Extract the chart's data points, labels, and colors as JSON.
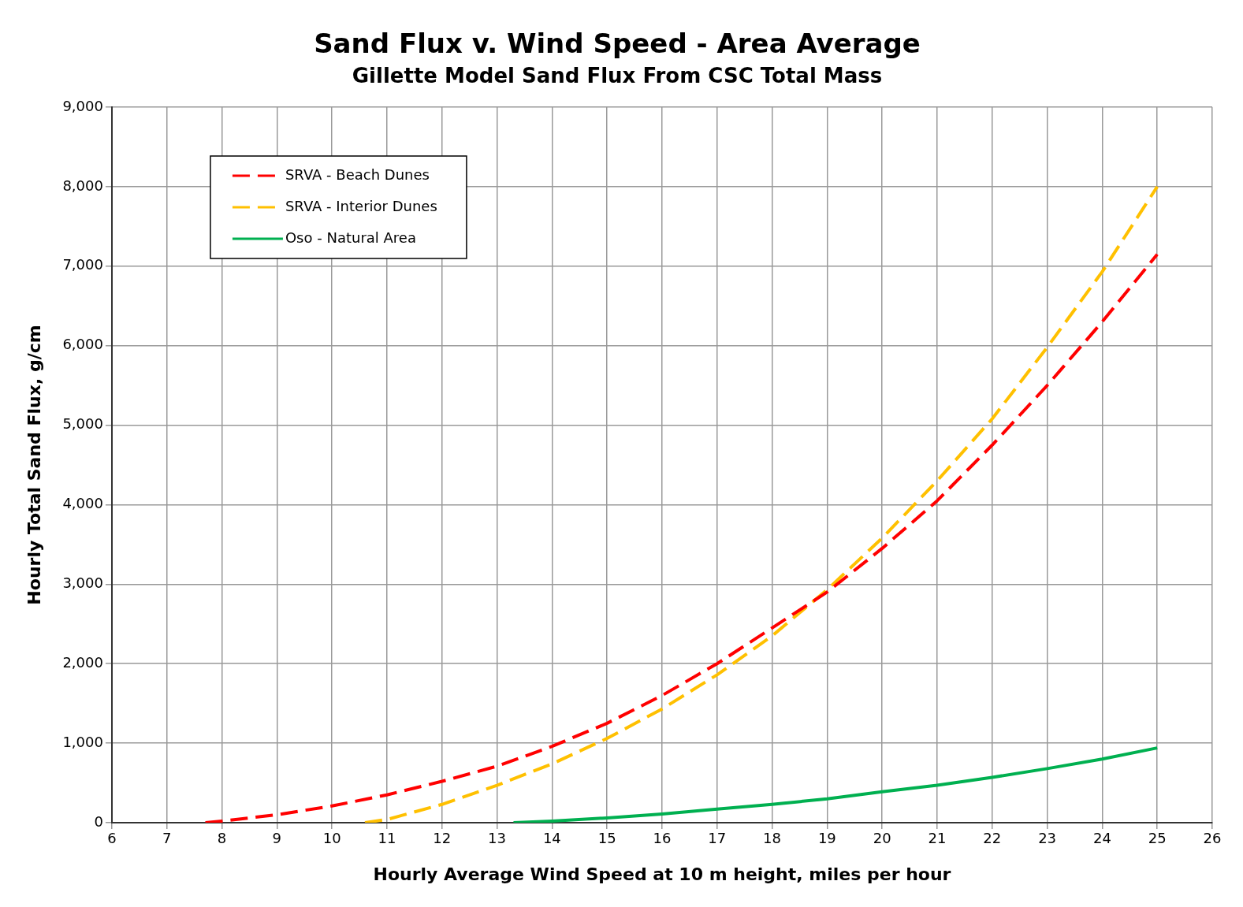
{
  "chart_data": {
    "type": "line",
    "title": "Sand Flux v. Wind Speed - Area Average",
    "subtitle": "Gillette Model Sand Flux From CSC Total Mass",
    "xlabel": "Hourly Average Wind Speed at 10 m height, miles per hour",
    "ylabel": "Hourly Total Sand Flux, g/cm",
    "series": [
      {
        "name": "SRVA - Beach Dunes",
        "color": "#ff0000",
        "line_style": "dashed",
        "x": [
          7.7,
          8,
          9,
          10,
          11,
          12,
          13,
          14,
          15,
          16,
          17,
          18,
          19,
          20,
          21,
          22,
          23,
          24,
          25
        ],
        "values": [
          0,
          20,
          100,
          210,
          350,
          520,
          710,
          960,
          1250,
          1600,
          2000,
          2450,
          2900,
          3450,
          4050,
          4750,
          5500,
          6300,
          7150
        ]
      },
      {
        "name": "SRVA - Interior Dunes",
        "color": "#ffc000",
        "line_style": "dashed",
        "x": [
          10.6,
          11,
          12,
          13,
          14,
          15,
          16,
          17,
          18,
          19,
          20,
          21,
          22,
          23,
          24,
          25
        ],
        "values": [
          0,
          40,
          230,
          470,
          740,
          1060,
          1430,
          1860,
          2350,
          2930,
          3580,
          4300,
          5080,
          5980,
          6930,
          8000
        ]
      },
      {
        "name": "Oso - Natural Area",
        "color": "#00b050",
        "line_style": "solid",
        "x": [
          13.3,
          14,
          15,
          16,
          17,
          18,
          19,
          20,
          21,
          22,
          23,
          24,
          25
        ],
        "values": [
          0,
          20,
          60,
          110,
          170,
          230,
          300,
          390,
          470,
          570,
          680,
          800,
          940
        ]
      }
    ],
    "xlim": [
      6,
      26
    ],
    "xticks": [
      6,
      7,
      8,
      9,
      10,
      11,
      12,
      13,
      14,
      15,
      16,
      17,
      18,
      19,
      20,
      21,
      22,
      23,
      24,
      25,
      26
    ],
    "ylim": [
      0,
      9000
    ],
    "yticks": [
      0,
      {
        "value": 1000,
        "label": "1,000"
      },
      {
        "value": 2000,
        "label": "2,000"
      },
      {
        "value": 3000,
        "label": "3,000"
      },
      {
        "value": 4000,
        "label": "4,000"
      },
      {
        "value": 5000,
        "label": "5,000"
      },
      {
        "value": 6000,
        "label": "6,000"
      },
      {
        "value": 7000,
        "label": "7,000"
      },
      {
        "value": 8000,
        "label": "8,000"
      },
      {
        "value": 9000,
        "label": "9,000"
      }
    ],
    "grid": true,
    "legend": "top left",
    "marker": "none"
  }
}
